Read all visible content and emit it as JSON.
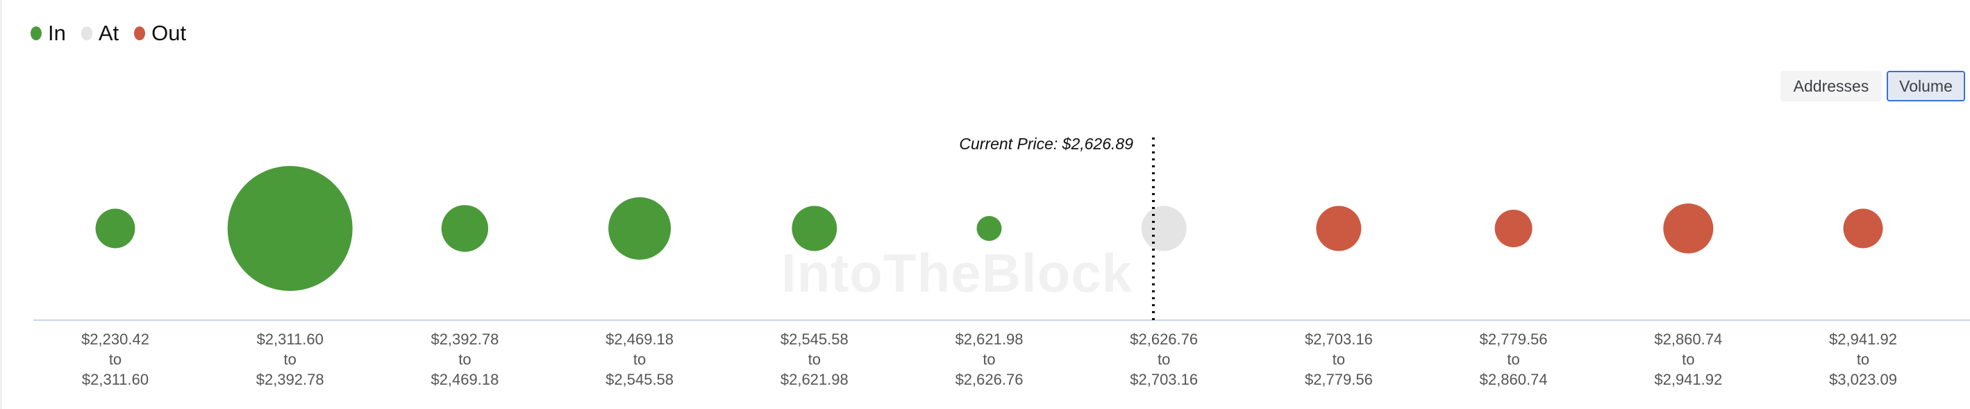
{
  "chart_data": {
    "type": "bubble",
    "legend": [
      {
        "label": "In",
        "color": "#4a9a3a"
      },
      {
        "label": "At",
        "color": "#e4e4e4"
      },
      {
        "label": "Out",
        "color": "#cc5a42"
      }
    ],
    "legend_placement": "top-left",
    "toggle": {
      "options": [
        "Addresses",
        "Volume"
      ],
      "selected": "Volume"
    },
    "current_price_label": "Current Price: $2,626.89",
    "current_price_bucket_index": 6,
    "watermark": "IntoTheBlock",
    "buckets": [
      {
        "from": "$2,230.42",
        "to": "$2,311.60",
        "status": "In",
        "relative_volume": 10
      },
      {
        "from": "$2,311.60",
        "to": "$2,392.78",
        "status": "In",
        "relative_volume": 100
      },
      {
        "from": "$2,392.78",
        "to": "$2,469.18",
        "status": "In",
        "relative_volume": 14
      },
      {
        "from": "$2,469.18",
        "to": "$2,545.58",
        "status": "In",
        "relative_volume": 25
      },
      {
        "from": "$2,545.58",
        "to": "$2,621.98",
        "status": "In",
        "relative_volume": 13
      },
      {
        "from": "$2,621.98",
        "to": "$2,626.76",
        "status": "In",
        "relative_volume": 4
      },
      {
        "from": "$2,626.76",
        "to": "$2,703.16",
        "status": "At",
        "relative_volume": 13
      },
      {
        "from": "$2,703.16",
        "to": "$2,779.56",
        "status": "Out",
        "relative_volume": 13
      },
      {
        "from": "$2,779.56",
        "to": "$2,860.74",
        "status": "Out",
        "relative_volume": 9
      },
      {
        "from": "$2,860.74",
        "to": "$2,941.92",
        "status": "Out",
        "relative_volume": 16
      },
      {
        "from": "$2,941.92",
        "to": "$3,023.09",
        "status": "Out",
        "relative_volume": 10
      }
    ],
    "to_word": "to"
  }
}
